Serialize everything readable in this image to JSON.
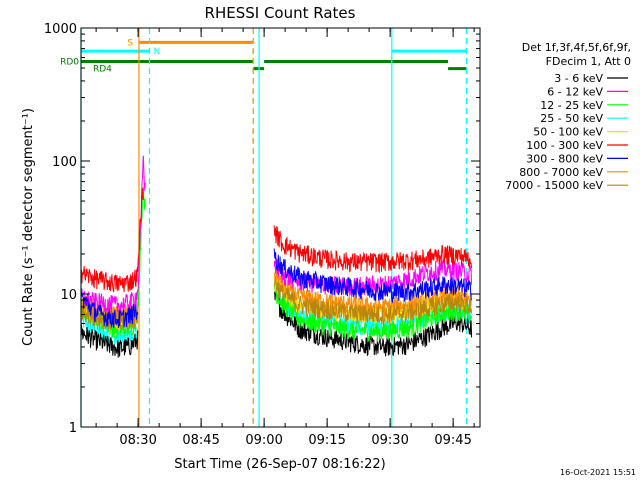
{
  "chart_data": {
    "type": "line",
    "title": "RHESSI Count Rates",
    "xlabel": "Start Time (26-Sep-07 08:16:22)",
    "ylabel": "Count Rate (s⁻¹ detector segment⁻¹)",
    "yscale": "log",
    "ylim": [
      1,
      1000
    ],
    "y_ticks": [
      1,
      10,
      100,
      1000
    ],
    "x_unit": "minutes after 08:16:22",
    "xlim": [
      0,
      95
    ],
    "x_ticks": [
      {
        "value": 13.6,
        "label": "08:30"
      },
      {
        "value": 28.6,
        "label": "08:45"
      },
      {
        "value": 43.6,
        "label": "09:00"
      },
      {
        "value": 58.6,
        "label": "09:15"
      },
      {
        "value": 73.6,
        "label": "09:30"
      },
      {
        "value": 88.6,
        "label": "09:45"
      }
    ],
    "x_minor_step": 5,
    "timestamp": "16-Oct-2021 15:51",
    "legend": {
      "placement": "right",
      "header": [
        "Det 1f,3f,4f,5f,6f,9f,",
        "FDecim 1, Att 0"
      ],
      "entries": [
        {
          "label": "3 - 6 keV",
          "color": "#000000"
        },
        {
          "label": "6 - 12 keV",
          "color": "#ff00ff"
        },
        {
          "label": "12 - 25 keV",
          "color": "#00ff00"
        },
        {
          "label": "25 - 50 keV",
          "color": "#00ffff"
        },
        {
          "label": "50 - 100 keV",
          "color": "#ffdd00"
        },
        {
          "label": "100 - 300 keV",
          "color": "#ff0000"
        },
        {
          "label": "300 - 800 keV",
          "color": "#0000ff"
        },
        {
          "label": "800 - 7000 keV",
          "color": "#ff8c00"
        },
        {
          "label": "7000 - 15000 keV",
          "color": "#b8860b"
        }
      ]
    },
    "series": [
      {
        "name": "3 - 6 keV",
        "color": "#000000",
        "pre": {
          "x": [
            0,
            3,
            6,
            9,
            12,
            13.5
          ],
          "y": [
            5.2,
            4.6,
            4.2,
            3.9,
            4.1,
            4.6
          ]
        },
        "post": {
          "x": [
            46,
            48,
            52,
            58,
            65,
            72,
            78,
            82,
            86,
            90,
            93
          ],
          "y": [
            9.5,
            7.5,
            5.5,
            4.8,
            4.3,
            4.0,
            4.2,
            4.8,
            5.6,
            6.2,
            5.5
          ]
        }
      },
      {
        "name": "6 - 12 keV",
        "color": "#ff00ff",
        "pre": {
          "x": [
            0,
            3,
            6,
            9,
            12,
            13.5,
            14.2,
            14.8,
            15.3
          ],
          "y": [
            9.5,
            8.8,
            8.5,
            8.2,
            8.8,
            10,
            30,
            110,
            60
          ]
        },
        "post": {
          "x": [
            46,
            48,
            52,
            58,
            65,
            72,
            78,
            82,
            86,
            90,
            93
          ],
          "y": [
            17,
            14,
            12.5,
            11.8,
            11.5,
            11.8,
            13,
            14.5,
            15.5,
            15,
            14
          ]
        }
      },
      {
        "name": "12 - 25 keV",
        "color": "#00ff00",
        "pre": {
          "x": [
            0,
            3,
            6,
            9,
            12,
            13.5,
            14.2,
            14.8,
            15.3
          ],
          "y": [
            8,
            6.8,
            6.0,
            5.4,
            5.7,
            7,
            25,
            70,
            40
          ]
        },
        "post": {
          "x": [
            46,
            48,
            52,
            58,
            65,
            72,
            78,
            82,
            86,
            90,
            93
          ],
          "y": [
            11,
            8.5,
            6.5,
            5.8,
            5.4,
            5.2,
            5.6,
            6.3,
            7.2,
            7.5,
            6.8
          ]
        }
      },
      {
        "name": "25 - 50 keV",
        "color": "#00ffff",
        "pre": {
          "x": [
            0,
            3,
            6,
            9,
            12,
            13.5
          ],
          "y": [
            6.5,
            5.5,
            4.9,
            4.6,
            4.8,
            5.2
          ]
        },
        "post": {
          "x": [
            46,
            48,
            52,
            58,
            65,
            72,
            78,
            82,
            86,
            90,
            93
          ],
          "y": [
            11,
            9,
            7,
            6.2,
            5.9,
            5.8,
            6.2,
            6.8,
            7.5,
            7.8,
            7.2
          ]
        }
      },
      {
        "name": "50 - 100 keV",
        "color": "#ffdd00",
        "pre": {
          "x": [
            0,
            3,
            6,
            9,
            12,
            13.5
          ],
          "y": [
            8.2,
            7.2,
            6.8,
            6.5,
            6.8,
            7.2
          ]
        },
        "post": {
          "x": [
            46,
            48,
            52,
            58,
            65,
            72,
            78,
            82,
            86,
            90,
            93
          ],
          "y": [
            13,
            10.5,
            8.5,
            7.8,
            7.3,
            7.2,
            7.6,
            8.3,
            9.0,
            9.3,
            8.6
          ]
        }
      },
      {
        "name": "100 - 300 keV",
        "color": "#ff0000",
        "pre": {
          "x": [
            0,
            3,
            6,
            9,
            12,
            13.5,
            14.2,
            14.8
          ],
          "y": [
            14.5,
            13.2,
            12.5,
            12,
            12.5,
            14,
            40,
            60
          ]
        },
        "post": {
          "x": [
            46,
            48,
            52,
            58,
            65,
            72,
            78,
            82,
            86,
            90,
            93
          ],
          "y": [
            30,
            24,
            20.5,
            18.5,
            17.5,
            17.5,
            18,
            18.5,
            20,
            19.5,
            18.5
          ]
        }
      },
      {
        "name": "300 - 800 keV",
        "color": "#0000ff",
        "pre": {
          "x": [
            0,
            3,
            6,
            9,
            12,
            13.5
          ],
          "y": [
            9.5,
            7.5,
            6.8,
            6.5,
            7.0,
            7.8
          ]
        },
        "post": {
          "x": [
            46,
            48,
            52,
            58,
            65,
            72,
            78,
            82,
            86,
            90,
            93
          ],
          "y": [
            19,
            16,
            13.5,
            12,
            11.2,
            10.5,
            10.5,
            11,
            11.8,
            11.5,
            10.8
          ]
        }
      },
      {
        "name": "800 - 7000 keV",
        "color": "#ff8c00",
        "pre": {
          "x": [
            0,
            3,
            6,
            9,
            12,
            13.5
          ],
          "y": [
            8.8,
            7.8,
            7.2,
            6.9,
            7.2,
            7.6
          ]
        },
        "post": {
          "x": [
            46,
            48,
            52,
            58,
            65,
            72,
            78,
            82,
            86,
            90,
            93
          ],
          "y": [
            14.5,
            11.5,
            9.6,
            8.8,
            8.3,
            8.0,
            8.3,
            8.8,
            9.6,
            9.8,
            9.1
          ]
        }
      },
      {
        "name": "7000 - 15000 keV",
        "color": "#b8860b",
        "pre": {
          "x": [
            0,
            3,
            6,
            9,
            12,
            13.5
          ],
          "y": [
            7.8,
            6.9,
            6.4,
            6.1,
            6.4,
            6.9
          ]
        },
        "post": {
          "x": [
            46,
            48,
            52,
            58,
            65,
            72,
            78,
            82,
            86,
            90,
            93
          ],
          "y": [
            12.5,
            10,
            8.4,
            7.7,
            7.2,
            7.0,
            7.3,
            7.8,
            8.5,
            8.7,
            8.0
          ]
        }
      }
    ],
    "vertical_lines": [
      {
        "x": 0,
        "color": "#00ffff",
        "dash": false
      },
      {
        "x": 13.8,
        "color": "#ff8c00",
        "dash": false
      },
      {
        "x": 16.3,
        "color": "#00ffff",
        "dash": true
      },
      {
        "x": 41.0,
        "color": "#ff8c00",
        "dash": true
      },
      {
        "x": 42.4,
        "color": "#00ffff",
        "dash": false
      },
      {
        "x": 74.0,
        "color": "#00ffff",
        "dash": false
      },
      {
        "x": 91.8,
        "color": "#00ffff",
        "dash": true
      }
    ],
    "flag_bars": [
      {
        "label": "S",
        "color": "#ff8c00",
        "y": 780,
        "segments": [
          [
            13.8,
            41.0
          ]
        ]
      },
      {
        "label": "N",
        "color": "#00ffff",
        "y": 670,
        "segments": [
          [
            0,
            16.3
          ],
          [
            74.0,
            91.8
          ]
        ]
      },
      {
        "label": "RD0",
        "color": "#008000",
        "y": 560,
        "segments": [
          [
            0,
            41.0
          ],
          [
            43.6,
            87.4
          ]
        ]
      },
      {
        "label": "RD4",
        "color": "#008000",
        "y": 495,
        "segments": [
          [
            41.0,
            43.6
          ],
          [
            87.4,
            91.8
          ]
        ]
      }
    ]
  }
}
